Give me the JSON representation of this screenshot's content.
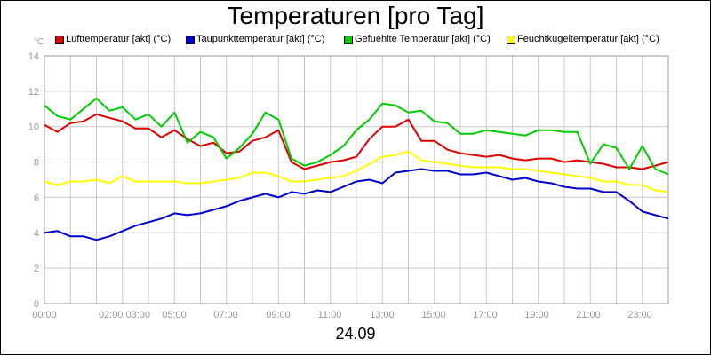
{
  "chart_data": {
    "type": "line",
    "title": "Temperaturen [pro Tag]",
    "ylabel": "°C",
    "xlabel": "24.09",
    "ylim": [
      0,
      14
    ],
    "yticks": [
      0,
      2,
      4,
      6,
      8,
      10,
      12,
      14
    ],
    "xlim": [
      0,
      24
    ],
    "xtick_labels": [
      "00:00",
      "02:00 03:00",
      "05:00",
      "07:00",
      "09:00",
      "11:00",
      "13:00",
      "15:00",
      "17:00",
      "19:00",
      "21:00",
      "23:00"
    ],
    "grid": true,
    "legend_position": "top",
    "series": [
      {
        "name": "Lufttemperatur [akt] (°C)",
        "color": "#e00000",
        "x": [
          0,
          0.5,
          1,
          1.5,
          2,
          2.5,
          3,
          3.5,
          4,
          4.5,
          5,
          5.5,
          6,
          6.5,
          7,
          7.5,
          8,
          8.5,
          9,
          9.5,
          10,
          10.5,
          11,
          11.5,
          12,
          12.5,
          13,
          13.5,
          14,
          14.5,
          15,
          15.5,
          16,
          16.5,
          17,
          17.5,
          18,
          18.5,
          19,
          19.5,
          20,
          20.5,
          21,
          21.5,
          22,
          22.5,
          23,
          23.5,
          24
        ],
        "values": [
          10.1,
          9.7,
          10.2,
          10.3,
          10.7,
          10.5,
          10.3,
          9.9,
          9.9,
          9.4,
          9.8,
          9.3,
          8.9,
          9.1,
          8.5,
          8.6,
          9.2,
          9.4,
          9.8,
          8.0,
          7.6,
          7.8,
          8.0,
          8.1,
          8.3,
          9.3,
          10.0,
          10.0,
          10.4,
          9.2,
          9.2,
          8.7,
          8.5,
          8.4,
          8.3,
          8.4,
          8.2,
          8.1,
          8.2,
          8.2,
          8.0,
          8.1,
          8.0,
          7.9,
          7.7,
          7.7,
          7.6,
          7.8,
          8.0
        ]
      },
      {
        "name": "Taupunkttemperatur [akt] (°C)",
        "color": "#0000cc",
        "x": [
          0,
          0.5,
          1,
          1.5,
          2,
          2.5,
          3,
          3.5,
          4,
          4.5,
          5,
          5.5,
          6,
          6.5,
          7,
          7.5,
          8,
          8.5,
          9,
          9.5,
          10,
          10.5,
          11,
          11.5,
          12,
          12.5,
          13,
          13.5,
          14,
          14.5,
          15,
          15.5,
          16,
          16.5,
          17,
          17.5,
          18,
          18.5,
          19,
          19.5,
          20,
          20.5,
          21,
          21.5,
          22,
          22.5,
          23,
          23.5,
          24
        ],
        "values": [
          4.0,
          4.1,
          3.8,
          3.8,
          3.6,
          3.8,
          4.1,
          4.4,
          4.6,
          4.8,
          5.1,
          5.0,
          5.1,
          5.3,
          5.5,
          5.8,
          6.0,
          6.2,
          6.0,
          6.3,
          6.2,
          6.4,
          6.3,
          6.6,
          6.9,
          7.0,
          6.8,
          7.4,
          7.5,
          7.6,
          7.5,
          7.5,
          7.3,
          7.3,
          7.4,
          7.2,
          7.0,
          7.1,
          6.9,
          6.8,
          6.6,
          6.5,
          6.5,
          6.3,
          6.3,
          5.8,
          5.2,
          5.0,
          4.8
        ]
      },
      {
        "name": "Gefuehlte Temperatur [akt] (°C)",
        "color": "#00cc00",
        "x": [
          0,
          0.5,
          1,
          1.5,
          2,
          2.5,
          3,
          3.5,
          4,
          4.5,
          5,
          5.5,
          6,
          6.5,
          7,
          7.5,
          8,
          8.5,
          9,
          9.5,
          10,
          10.5,
          11,
          11.5,
          12,
          12.5,
          13,
          13.5,
          14,
          14.5,
          15,
          15.5,
          16,
          16.5,
          17,
          17.5,
          18,
          18.5,
          19,
          19.5,
          20,
          20.5,
          21,
          21.5,
          22,
          22.5,
          23,
          23.5,
          24
        ],
        "values": [
          11.2,
          10.6,
          10.4,
          11.0,
          11.6,
          10.9,
          11.1,
          10.4,
          10.7,
          10.0,
          10.8,
          9.1,
          9.7,
          9.4,
          8.2,
          8.8,
          9.6,
          10.8,
          10.4,
          8.2,
          7.8,
          8.0,
          8.4,
          8.9,
          9.8,
          10.4,
          11.3,
          11.2,
          10.8,
          10.9,
          10.3,
          10.2,
          9.6,
          9.6,
          9.8,
          9.7,
          9.6,
          9.5,
          9.8,
          9.8,
          9.7,
          9.7,
          7.9,
          9.0,
          8.8,
          7.6,
          8.9,
          7.6,
          7.3
        ]
      },
      {
        "name": "Feuchtkugeltemperatur [akt] (°C)",
        "color": "#ffff00",
        "x": [
          0,
          0.5,
          1,
          1.5,
          2,
          2.5,
          3,
          3.5,
          4,
          4.5,
          5,
          5.5,
          6,
          6.5,
          7,
          7.5,
          8,
          8.5,
          9,
          9.5,
          10,
          10.5,
          11,
          11.5,
          12,
          12.5,
          13,
          13.5,
          14,
          14.5,
          15,
          15.5,
          16,
          16.5,
          17,
          17.5,
          18,
          18.5,
          19,
          19.5,
          20,
          20.5,
          21,
          21.5,
          22,
          22.5,
          23,
          23.5,
          24
        ],
        "values": [
          6.9,
          6.7,
          6.9,
          6.9,
          7.0,
          6.8,
          7.2,
          6.9,
          6.9,
          6.9,
          6.9,
          6.8,
          6.8,
          6.9,
          7.0,
          7.1,
          7.4,
          7.4,
          7.2,
          6.9,
          6.9,
          7.0,
          7.1,
          7.2,
          7.5,
          7.9,
          8.3,
          8.4,
          8.6,
          8.1,
          8.0,
          7.9,
          7.8,
          7.7,
          7.7,
          7.7,
          7.6,
          7.6,
          7.5,
          7.4,
          7.3,
          7.2,
          7.1,
          6.9,
          6.9,
          6.7,
          6.7,
          6.4,
          6.3
        ]
      }
    ]
  }
}
